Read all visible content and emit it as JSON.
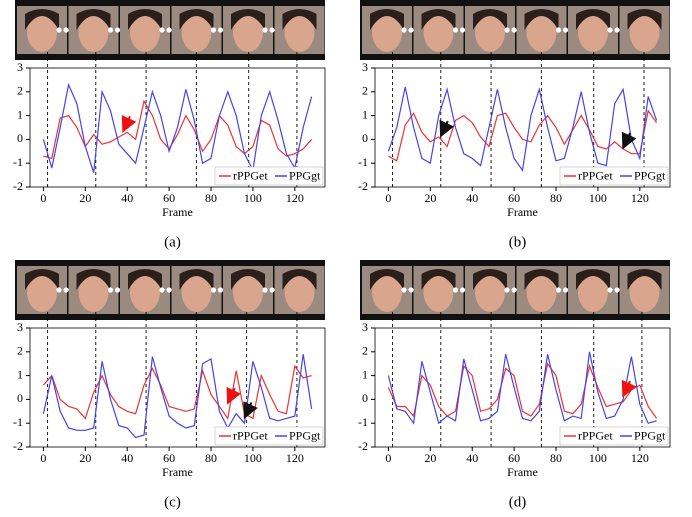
{
  "chart_data": [
    {
      "type": "line",
      "caption": "(a)",
      "xlabel": "Frame",
      "x": [
        0,
        4,
        8,
        12,
        16,
        20,
        24,
        28,
        32,
        36,
        40,
        44,
        48,
        52,
        56,
        60,
        64,
        68,
        72,
        76,
        80,
        84,
        88,
        92,
        96,
        100,
        104,
        108,
        112,
        116,
        120,
        124,
        128
      ],
      "series": [
        {
          "name": "rPPGet",
          "color": "#ee3333",
          "values": [
            -0.7,
            -0.8,
            0.9,
            1.0,
            0.5,
            -0.3,
            0.2,
            -0.2,
            -0.1,
            0.1,
            0.3,
            0.0,
            1.6,
            1.0,
            0.0,
            -0.4,
            0.2,
            1.0,
            0.4,
            -0.5,
            0.0,
            1.0,
            0.6,
            -0.3,
            -0.6,
            -0.3,
            0.8,
            0.6,
            -0.4,
            -0.7,
            -0.6,
            -0.4,
            0.0
          ]
        },
        {
          "name": "PPGgt",
          "color": "#4444ee",
          "values": [
            0.0,
            -1.2,
            0.5,
            2.3,
            1.5,
            -0.3,
            -1.4,
            2.0,
            1.2,
            -0.2,
            -0.6,
            -1.0,
            0.5,
            2.0,
            1.0,
            -0.5,
            0.5,
            2.1,
            0.8,
            -1.0,
            -0.8,
            1.0,
            2.0,
            1.0,
            -0.6,
            -1.3,
            1.0,
            2.0,
            0.8,
            -0.6,
            -1.2,
            0.5,
            1.8
          ]
        }
      ],
      "markers": [
        2,
        25,
        49,
        73,
        98,
        121
      ],
      "arrows": [
        {
          "x": 38,
          "y": 0.3,
          "color": "#ee1111"
        }
      ],
      "xlim": [
        -6.4,
        134.4
      ],
      "ylim": [
        -2,
        3
      ],
      "xticks": [
        0,
        20,
        40,
        60,
        80,
        100,
        120
      ],
      "yticks": [
        -2,
        -1,
        0,
        1,
        2,
        3
      ],
      "legend": "lower right"
    },
    {
      "type": "line",
      "caption": "(b)",
      "xlabel": "Frame",
      "x": [
        0,
        4,
        8,
        12,
        16,
        20,
        24,
        28,
        32,
        36,
        40,
        44,
        48,
        52,
        56,
        60,
        64,
        68,
        72,
        76,
        80,
        84,
        88,
        92,
        96,
        100,
        104,
        108,
        112,
        116,
        120,
        124,
        128
      ],
      "series": [
        {
          "name": "rPPGet",
          "color": "#ee3333",
          "values": [
            -0.7,
            -0.9,
            0.6,
            1.1,
            0.3,
            -0.1,
            0.1,
            -0.3,
            0.8,
            1.0,
            0.7,
            0.1,
            -0.3,
            1.0,
            1.1,
            0.5,
            0.0,
            -0.1,
            0.6,
            1.0,
            0.5,
            -0.2,
            0.4,
            1.0,
            0.4,
            -0.3,
            -0.4,
            -0.1,
            -0.4,
            -0.6,
            -0.6,
            1.2,
            0.7
          ]
        },
        {
          "name": "PPGgt",
          "color": "#4444ee",
          "values": [
            -0.5,
            0.5,
            2.2,
            0.5,
            -0.8,
            -1.0,
            1.0,
            2.1,
            0.5,
            -0.6,
            -0.8,
            -1.1,
            0.5,
            2.1,
            0.5,
            -0.8,
            -1.3,
            1.0,
            2.1,
            0.5,
            -0.9,
            -0.8,
            0.5,
            2.0,
            0.3,
            -1.0,
            -1.1,
            1.5,
            2.1,
            0.0,
            -0.8,
            1.8,
            0.8
          ]
        }
      ],
      "markers": [
        2,
        25,
        49,
        73,
        98,
        122
      ],
      "arrows": [
        {
          "x": 25,
          "y": 0.1,
          "color": "#111111"
        },
        {
          "x": 112,
          "y": -0.4,
          "color": "#111111"
        }
      ],
      "xlim": [
        -6.4,
        134.4
      ],
      "ylim": [
        -2,
        3
      ],
      "xticks": [
        0,
        20,
        40,
        60,
        80,
        100,
        120
      ],
      "yticks": [
        -2,
        -1,
        0,
        1,
        2,
        3
      ],
      "legend": "lower right"
    },
    {
      "type": "line",
      "caption": "(c)",
      "xlabel": "Frame",
      "x": [
        0,
        4,
        8,
        12,
        16,
        20,
        24,
        28,
        32,
        36,
        40,
        44,
        48,
        52,
        56,
        60,
        64,
        68,
        72,
        76,
        80,
        84,
        88,
        92,
        96,
        100,
        104,
        108,
        112,
        116,
        120,
        124,
        128
      ],
      "series": [
        {
          "name": "rPPGet",
          "color": "#ee3333",
          "values": [
            0.6,
            1.0,
            0.0,
            -0.3,
            -0.4,
            -0.8,
            0.3,
            1.0,
            0.2,
            -0.3,
            -0.5,
            -0.6,
            0.6,
            1.3,
            0.6,
            -0.3,
            -0.4,
            -0.5,
            -0.4,
            1.2,
            0.2,
            -0.3,
            -0.8,
            1.2,
            -0.6,
            -0.8,
            1.0,
            0.2,
            -0.5,
            -0.6,
            1.4,
            0.9,
            1.0
          ]
        },
        {
          "name": "PPGgt",
          "color": "#4444ee",
          "values": [
            -0.6,
            1.0,
            -0.5,
            -1.2,
            -1.3,
            -1.3,
            -1.2,
            1.6,
            0.0,
            -1.1,
            -1.2,
            -1.6,
            -1.5,
            1.8,
            0.5,
            -0.7,
            -1.0,
            -1.2,
            -1.1,
            1.5,
            1.7,
            -0.5,
            -1.2,
            -0.6,
            -1.0,
            1.6,
            0.5,
            -0.8,
            -0.9,
            -0.8,
            -0.7,
            1.9,
            -0.4
          ]
        }
      ],
      "markers": [
        2,
        25,
        49,
        73,
        97,
        121
      ],
      "arrows": [
        {
          "x": 88,
          "y": -0.2,
          "color": "#ee1111"
        },
        {
          "x": 96,
          "y": -0.8,
          "color": "#111111"
        }
      ],
      "xlim": [
        -6.4,
        134.4
      ],
      "ylim": [
        -2,
        3
      ],
      "xticks": [
        0,
        20,
        40,
        60,
        80,
        100,
        120
      ],
      "yticks": [
        -2,
        -1,
        0,
        1,
        2,
        3
      ],
      "legend": "lower right"
    },
    {
      "type": "line",
      "caption": "(d)",
      "xlabel": "Frame",
      "x": [
        0,
        4,
        8,
        12,
        16,
        20,
        24,
        28,
        32,
        36,
        40,
        44,
        48,
        52,
        56,
        60,
        64,
        68,
        72,
        76,
        80,
        84,
        88,
        92,
        96,
        100,
        104,
        108,
        112,
        116,
        120,
        124,
        128
      ],
      "series": [
        {
          "name": "rPPGet",
          "color": "#ee3333",
          "values": [
            0.5,
            -0.3,
            -0.3,
            -0.7,
            1.0,
            0.6,
            -0.3,
            -0.7,
            -0.5,
            1.4,
            1.0,
            -0.5,
            -0.4,
            0.0,
            1.3,
            1.0,
            -0.5,
            -0.7,
            -0.2,
            1.5,
            1.0,
            -0.5,
            -0.6,
            -0.2,
            1.4,
            0.5,
            -0.3,
            -0.2,
            -0.1,
            0.4,
            0.6,
            -0.3,
            -0.8
          ]
        },
        {
          "name": "PPGgt",
          "color": "#4444ee",
          "values": [
            1.0,
            -0.4,
            -0.5,
            -1.0,
            1.6,
            0.3,
            -1.0,
            -0.7,
            -0.9,
            1.7,
            0.4,
            -0.9,
            -0.8,
            -0.5,
            1.9,
            0.5,
            -0.8,
            -0.9,
            -0.5,
            1.9,
            0.4,
            -0.9,
            -0.7,
            -0.8,
            2.0,
            0.3,
            -0.8,
            -0.7,
            0.0,
            1.8,
            -0.2,
            -1.0,
            -0.9
          ]
        }
      ],
      "markers": [
        2,
        25,
        49,
        73,
        98,
        121
      ],
      "arrows": [
        {
          "x": 112,
          "y": 0.1,
          "color": "#ee1111"
        }
      ],
      "xlim": [
        -6.4,
        134.4
      ],
      "ylim": [
        -2,
        3
      ],
      "xticks": [
        0,
        20,
        40,
        60,
        80,
        100,
        120
      ],
      "yticks": [
        -2,
        -1,
        0,
        1,
        2,
        3
      ],
      "legend": "lower right"
    }
  ]
}
